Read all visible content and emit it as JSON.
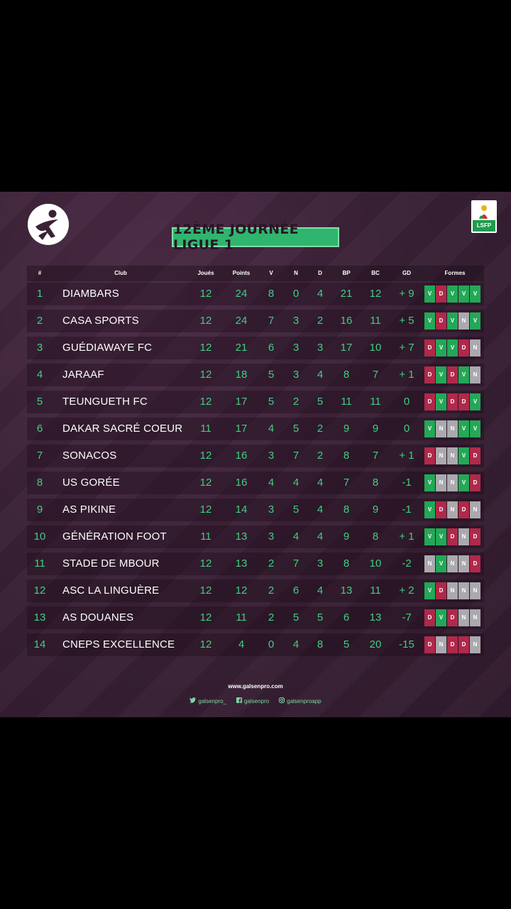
{
  "title": "12ÈME JOURNÉE LIGUE 1",
  "partner_logo_text": "LSFP",
  "headers": {
    "rank": "#",
    "club": "Club",
    "played": "Joués",
    "points": "Points",
    "w": "V",
    "d": "N",
    "l": "D",
    "gf": "BP",
    "ga": "BC",
    "gd": "GD",
    "form": "Formes"
  },
  "rows": [
    {
      "rank": "1",
      "club": "DIAMBARS",
      "played": "12",
      "points": "24",
      "w": "8",
      "d": "0",
      "l": "4",
      "gf": "21",
      "ga": "12",
      "gd": "+ 9",
      "form": [
        "V",
        "D",
        "V",
        "V",
        "V"
      ]
    },
    {
      "rank": "2",
      "club": "CASA SPORTS",
      "played": "12",
      "points": "24",
      "w": "7",
      "d": "3",
      "l": "2",
      "gf": "16",
      "ga": "11",
      "gd": "+ 5",
      "form": [
        "V",
        "D",
        "V",
        "N",
        "V"
      ]
    },
    {
      "rank": "3",
      "club": "GUÉDIAWAYE FC",
      "played": "12",
      "points": "21",
      "w": "6",
      "d": "3",
      "l": "3",
      "gf": "17",
      "ga": "10",
      "gd": "+ 7",
      "form": [
        "D",
        "V",
        "V",
        "D",
        "N"
      ]
    },
    {
      "rank": "4",
      "club": "JARAAF",
      "played": "12",
      "points": "18",
      "w": "5",
      "d": "3",
      "l": "4",
      "gf": "8",
      "ga": "7",
      "gd": "+ 1",
      "form": [
        "D",
        "V",
        "D",
        "V",
        "N"
      ]
    },
    {
      "rank": "5",
      "club": "TEUNGUETH FC",
      "played": "12",
      "points": "17",
      "w": "5",
      "d": "2",
      "l": "5",
      "gf": "11",
      "ga": "11",
      "gd": "0",
      "form": [
        "D",
        "V",
        "D",
        "D",
        "V"
      ]
    },
    {
      "rank": "6",
      "club": "DAKAR SACRÉ COEUR",
      "played": "11",
      "points": "17",
      "w": "4",
      "d": "5",
      "l": "2",
      "gf": "9",
      "ga": "9",
      "gd": "0",
      "form": [
        "V",
        "N",
        "N",
        "V",
        "V"
      ]
    },
    {
      "rank": "7",
      "club": "SONACOS",
      "played": "12",
      "points": "16",
      "w": "3",
      "d": "7",
      "l": "2",
      "gf": "8",
      "ga": "7",
      "gd": "+ 1",
      "form": [
        "D",
        "N",
        "N",
        "V",
        "D"
      ]
    },
    {
      "rank": "8",
      "club": "US GORÉE",
      "played": "12",
      "points": "16",
      "w": "4",
      "d": "4",
      "l": "4",
      "gf": "7",
      "ga": "8",
      "gd": "-1",
      "form": [
        "V",
        "N",
        "N",
        "V",
        "D"
      ]
    },
    {
      "rank": "9",
      "club": "AS PIKINE",
      "played": "12",
      "points": "14",
      "w": "3",
      "d": "5",
      "l": "4",
      "gf": "8",
      "ga": "9",
      "gd": "-1",
      "form": [
        "V",
        "D",
        "N",
        "D",
        "N"
      ]
    },
    {
      "rank": "10",
      "club": "GÉNÉRATION FOOT",
      "played": "11",
      "points": "13",
      "w": "3",
      "d": "4",
      "l": "4",
      "gf": "9",
      "ga": "8",
      "gd": "+ 1",
      "form": [
        "V",
        "V",
        "D",
        "N",
        "D"
      ]
    },
    {
      "rank": "11",
      "club": "STADE DE MBOUR",
      "played": "12",
      "points": "13",
      "w": "2",
      "d": "7",
      "l": "3",
      "gf": "8",
      "ga": "10",
      "gd": "-2",
      "form": [
        "N",
        "V",
        "N",
        "N",
        "D"
      ]
    },
    {
      "rank": "12",
      "club": "ASC LA LINGUÈRE",
      "played": "12",
      "points": "12",
      "w": "2",
      "d": "6",
      "l": "4",
      "gf": "13",
      "ga": "11",
      "gd": "+ 2",
      "form": [
        "V",
        "D",
        "N",
        "N",
        "N"
      ]
    },
    {
      "rank": "13",
      "club": "AS DOUANES",
      "played": "12",
      "points": "11",
      "w": "2",
      "d": "5",
      "l": "5",
      "gf": "6",
      "ga": "13",
      "gd": "-7",
      "form": [
        "D",
        "V",
        "D",
        "N",
        "N"
      ]
    },
    {
      "rank": "14",
      "club": "CNEPS EXCELLENCE",
      "played": "12",
      "points": "4",
      "w": "0",
      "d": "4",
      "l": "8",
      "gf": "5",
      "ga": "20",
      "gd": "-15",
      "form": [
        "D",
        "N",
        "D",
        "D",
        "N"
      ]
    }
  ],
  "footer": {
    "url": "www.galsenpro.com",
    "twitter": "galsenpro_",
    "facebook": "galsenpro",
    "instagram": "galsenproapp"
  },
  "colors": {
    "win": "#23a857",
    "loss": "#b0294a",
    "draw": "#a9a9ae",
    "accent": "#2fb56d"
  }
}
